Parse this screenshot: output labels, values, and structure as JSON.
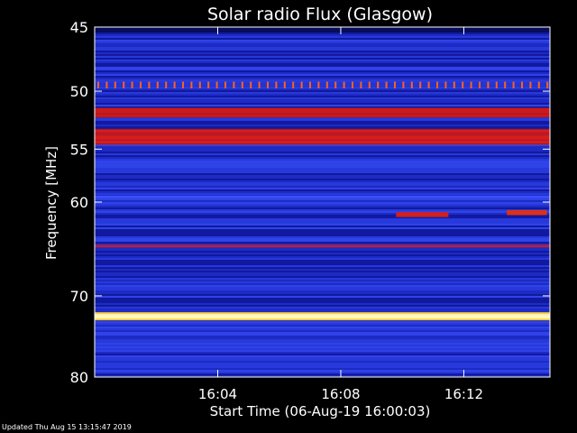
{
  "chart_data": {
    "type": "heatmap",
    "title": "Solar radio Flux (Glasgow)",
    "xlabel": "Start Time (06-Aug-19 16:00:03)",
    "ylabel": "Frequency [MHz]",
    "x_ticks": [
      "16:04",
      "16:08",
      "16:12"
    ],
    "x_tick_minutes": [
      4,
      8,
      12
    ],
    "x_range_minutes": [
      0,
      14.8
    ],
    "y_ticks": [
      45,
      50,
      55,
      60,
      70,
      80
    ],
    "ylim": [
      45,
      80
    ],
    "y_scale": "log",
    "grid": false,
    "colormap": [
      "#000000",
      "#14149a",
      "#2a36d8",
      "#3a4cf0",
      "#b01818",
      "#e02020",
      "#ffd000",
      "#ffffff"
    ],
    "background_color": "#1a28b8",
    "features": [
      {
        "kind": "band",
        "freq": [
          51.4,
          52.2
        ],
        "intensity": "high",
        "color": "#cc1a1a"
      },
      {
        "kind": "band",
        "freq": [
          53.2,
          54.6
        ],
        "intensity": "high",
        "color": "#d41e1e"
      },
      {
        "kind": "band",
        "freq": [
          49.3,
          49.7
        ],
        "intensity": "periodic-spikes",
        "color": "#ff6020"
      },
      {
        "kind": "line",
        "freq": 59.5,
        "intensity": "medium",
        "color": "#3a50ff"
      },
      {
        "kind": "line",
        "freq": 64.5,
        "intensity": "medium-high",
        "color": "#b02040"
      },
      {
        "kind": "line",
        "freq": 72.4,
        "intensity": "saturated",
        "color": "#fff6c0"
      },
      {
        "kind": "burst",
        "time_minutes": [
          9.8,
          11.5
        ],
        "freq": [
          61.0,
          61.5
        ],
        "color": "#d02020"
      },
      {
        "kind": "burst",
        "time_minutes": [
          13.4,
          14.7
        ],
        "freq": [
          60.8,
          61.3
        ],
        "color": "#e03018"
      }
    ]
  },
  "footer": {
    "updated": "Updated Thu Aug 15 13:15:47 2019"
  }
}
